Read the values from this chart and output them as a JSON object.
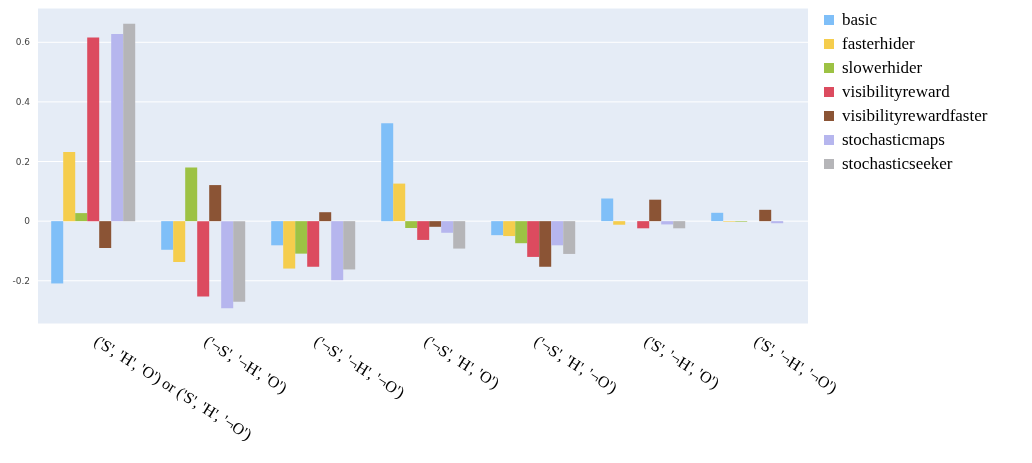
{
  "chart_data": {
    "type": "bar",
    "categories": [
      "('S', 'H', 'O') or ('S', 'H', '¬O')",
      "('¬S', '¬H', 'O')",
      "('¬S', '¬H', '¬O')",
      "('¬S', 'H', 'O')",
      "('¬S', 'H', '¬O')",
      "('S', '¬H', 'O')",
      "('S', '¬H', '¬O')"
    ],
    "series": [
      {
        "name": "basic",
        "color": "#7fbff8",
        "values": [
          -0.209,
          -0.096,
          -0.081,
          0.328,
          -0.047,
          0.076,
          0.028
        ]
      },
      {
        "name": "fasterhider",
        "color": "#f5cd4d",
        "values": [
          0.232,
          -0.137,
          -0.159,
          0.126,
          -0.05,
          -0.012,
          -0.002
        ]
      },
      {
        "name": "slowerhider",
        "color": "#9dc244",
        "values": [
          0.027,
          0.18,
          -0.109,
          -0.023,
          -0.074,
          null,
          -0.002
        ]
      },
      {
        "name": "visibilityreward",
        "color": "#dc4b5f",
        "values": [
          0.616,
          -0.253,
          -0.153,
          -0.063,
          -0.12,
          -0.024,
          null
        ]
      },
      {
        "name": "visibilityrewardfaster",
        "color": "#8b5435",
        "values": [
          -0.09,
          0.121,
          0.03,
          -0.019,
          -0.153,
          0.072,
          0.038
        ]
      },
      {
        "name": "stochasticmaps",
        "color": "#b6b6ee",
        "values": [
          0.628,
          -0.292,
          -0.198,
          -0.039,
          -0.081,
          -0.011,
          -0.007
        ]
      },
      {
        "name": "stochasticseeker",
        "color": "#b5b5b8",
        "values": [
          0.662,
          -0.27,
          -0.162,
          -0.092,
          -0.11,
          -0.024,
          null
        ]
      }
    ],
    "ylim": [
      -0.345,
      0.715
    ],
    "yticks": [
      -0.2,
      0,
      0.2,
      0.4,
      0.6
    ],
    "grid": "y",
    "legend": "top right"
  }
}
